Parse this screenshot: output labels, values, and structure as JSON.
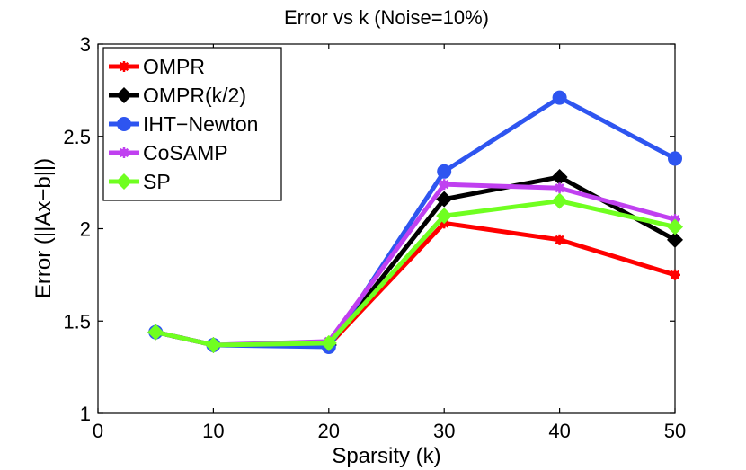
{
  "chart_data": {
    "type": "line",
    "title": "Error vs k (Noise=10%)",
    "xlabel": "Sparsity (k)",
    "ylabel": "Error (||Ax−b||)",
    "xlim": [
      0,
      50
    ],
    "ylim": [
      1,
      3
    ],
    "xticks": [
      0,
      10,
      20,
      30,
      40,
      50
    ],
    "yticks": [
      1,
      1.5,
      2,
      2.5,
      3
    ],
    "ytick_labels": [
      "1",
      "1.5",
      "2",
      "2.5",
      "3"
    ],
    "grid": false,
    "legend_position": "top-left",
    "x": [
      5,
      10,
      20,
      30,
      40,
      50
    ],
    "series": [
      {
        "name": "OMPR",
        "color": "#ff0000",
        "marker": "star",
        "values": [
          1.44,
          1.37,
          1.37,
          2.03,
          1.94,
          1.75
        ]
      },
      {
        "name": "OMPR(k/2)",
        "color": "#000000",
        "marker": "diamond",
        "values": [
          1.44,
          1.37,
          1.37,
          2.16,
          2.28,
          1.94
        ]
      },
      {
        "name": "IHT−Newton",
        "color": "#2e55f0",
        "marker": "circle",
        "values": [
          1.44,
          1.37,
          1.36,
          2.31,
          2.71,
          2.38
        ]
      },
      {
        "name": "CoSAMP",
        "color": "#c040f0",
        "marker": "star",
        "values": [
          1.44,
          1.37,
          1.39,
          2.24,
          2.22,
          2.05
        ]
      },
      {
        "name": "SP",
        "color": "#70ff20",
        "marker": "diamond",
        "values": [
          1.44,
          1.37,
          1.38,
          2.07,
          2.15,
          2.01
        ]
      }
    ]
  }
}
